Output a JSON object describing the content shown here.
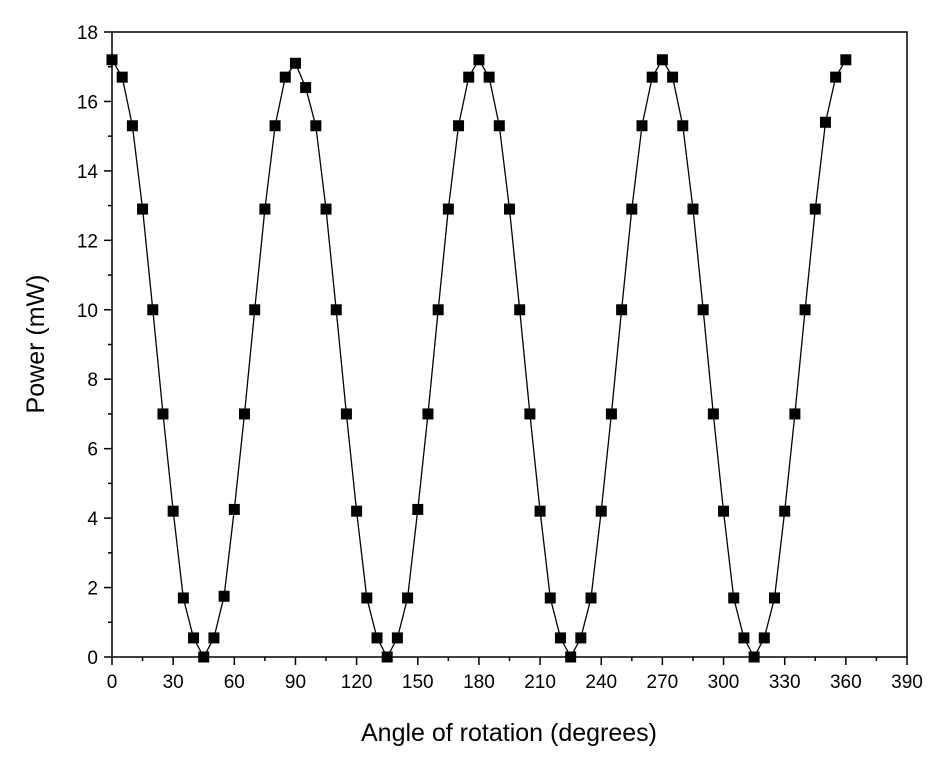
{
  "chart_data": {
    "type": "scatter",
    "title": "",
    "xlabel": "Angle of rotation (degrees)",
    "ylabel": "Power (mW)",
    "xlim": [
      0,
      390
    ],
    "ylim": [
      0,
      18
    ],
    "x_ticks": [
      "0",
      "30",
      "60",
      "90",
      "120",
      "150",
      "180",
      "210",
      "240",
      "270",
      "300",
      "330",
      "360",
      "390"
    ],
    "y_ticks": [
      "0",
      "2",
      "4",
      "6",
      "8",
      "10",
      "12",
      "14",
      "16",
      "18"
    ],
    "grid": false,
    "legend": "none",
    "marker": "square",
    "line_connected": true,
    "series": [
      {
        "color": "#000000",
        "x": [
          0,
          5,
          10,
          15,
          20,
          25,
          30,
          35,
          40,
          45,
          50,
          55,
          60,
          65,
          70,
          75,
          80,
          85,
          90,
          95,
          100,
          105,
          110,
          115,
          120,
          125,
          130,
          135,
          140,
          145,
          150,
          155,
          160,
          165,
          170,
          175,
          180,
          185,
          190,
          195,
          200,
          205,
          210,
          215,
          220,
          225,
          230,
          235,
          240,
          245,
          250,
          255,
          260,
          265,
          270,
          275,
          280,
          285,
          290,
          295,
          300,
          305,
          310,
          315,
          320,
          325,
          330,
          335,
          340,
          345,
          350,
          355,
          360
        ],
        "y": [
          17.2,
          16.7,
          15.3,
          12.9,
          10.0,
          7.0,
          4.2,
          1.7,
          0.55,
          0.0,
          0.55,
          1.75,
          4.25,
          7.0,
          10.0,
          12.9,
          15.3,
          16.7,
          17.1,
          16.4,
          15.3,
          12.9,
          10.0,
          7.0,
          4.2,
          1.7,
          0.55,
          0.0,
          0.55,
          1.7,
          4.25,
          7.0,
          10.0,
          12.9,
          15.3,
          16.7,
          17.2,
          16.7,
          15.3,
          12.9,
          10.0,
          7.0,
          4.2,
          1.7,
          0.55,
          0.0,
          0.55,
          1.7,
          4.2,
          7.0,
          10.0,
          12.9,
          15.3,
          16.7,
          17.2,
          16.7,
          15.3,
          12.9,
          10.0,
          7.0,
          4.2,
          1.7,
          0.55,
          0.0,
          0.55,
          1.7,
          4.2,
          7.0,
          10.0,
          12.9,
          15.4,
          16.7,
          17.2
        ]
      }
    ]
  }
}
